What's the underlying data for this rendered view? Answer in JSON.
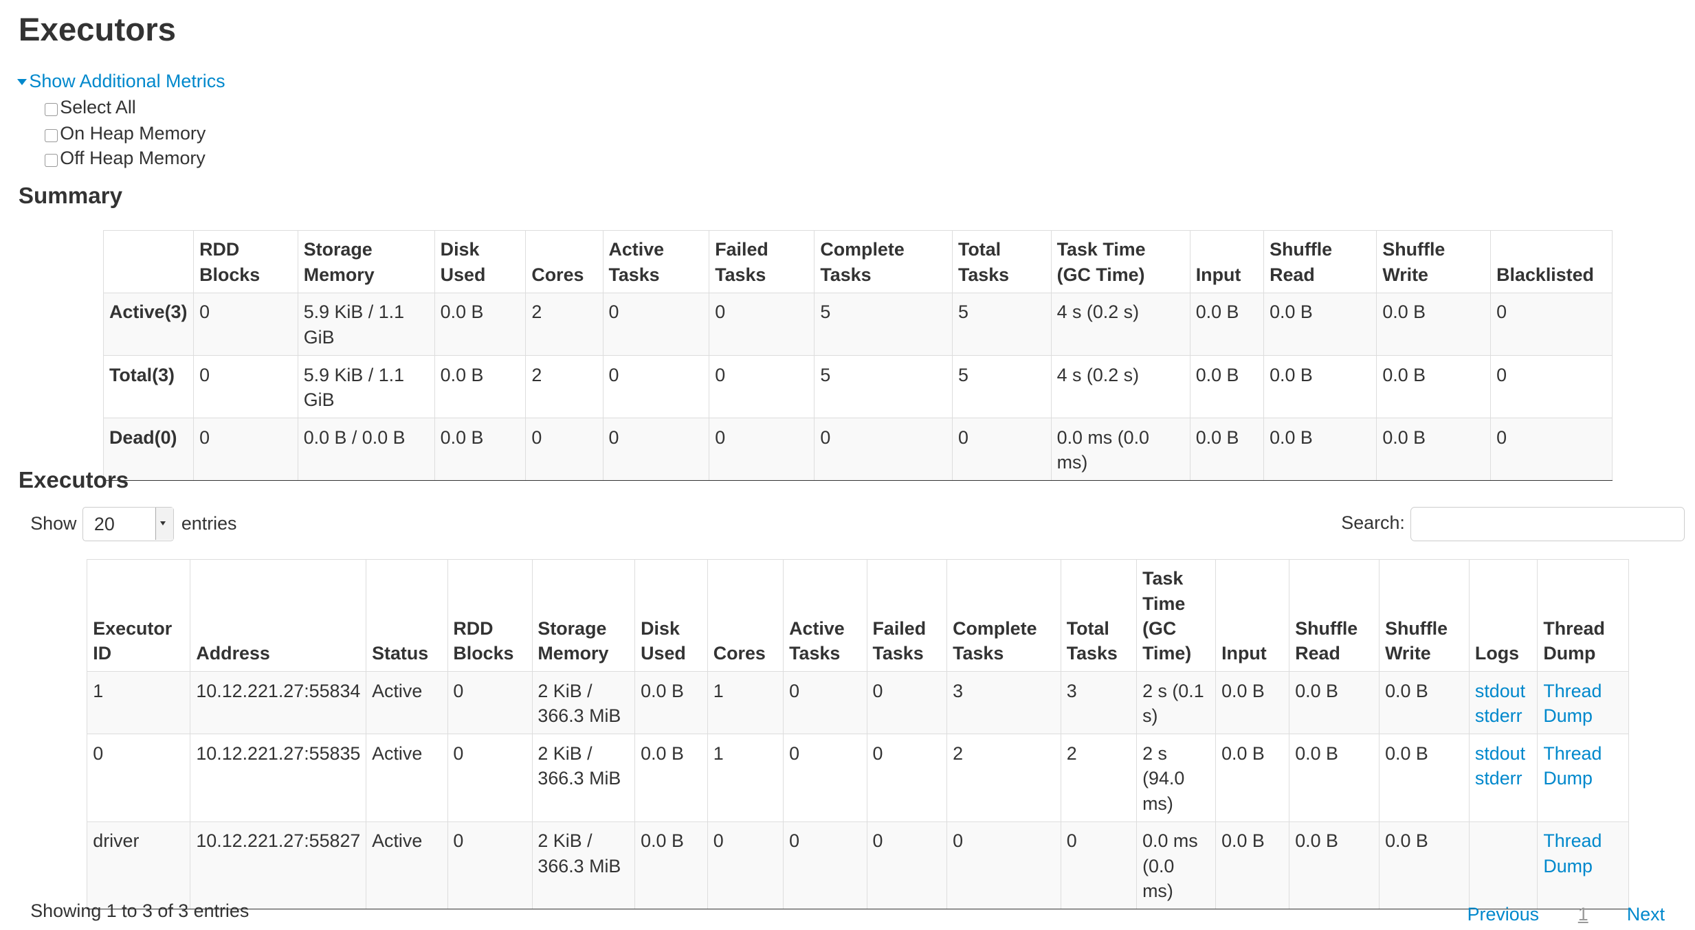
{
  "page_title": "Executors",
  "additional_metrics": {
    "toggle_label": "Show Additional Metrics",
    "options": [
      "Select All",
      "On Heap Memory",
      "Off Heap Memory"
    ]
  },
  "summary": {
    "heading": "Summary",
    "columns": [
      "",
      "RDD Blocks",
      "Storage Memory",
      "Disk Used",
      "Cores",
      "Active Tasks",
      "Failed Tasks",
      "Complete Tasks",
      "Total Tasks",
      "Task Time (GC Time)",
      "Input",
      "Shuffle Read",
      "Shuffle Write",
      "Blacklisted"
    ],
    "rows": [
      [
        "Active(3)",
        "0",
        "5.9 KiB / 1.1 GiB",
        "0.0 B",
        "2",
        "0",
        "0",
        "5",
        "5",
        "4 s (0.2 s)",
        "0.0 B",
        "0.0 B",
        "0.0 B",
        "0"
      ],
      [
        "Total(3)",
        "0",
        "5.9 KiB / 1.1 GiB",
        "0.0 B",
        "2",
        "0",
        "0",
        "5",
        "5",
        "4 s (0.2 s)",
        "0.0 B",
        "0.0 B",
        "0.0 B",
        "0"
      ],
      [
        "Dead(0)",
        "0",
        "0.0 B / 0.0 B",
        "0.0 B",
        "0",
        "0",
        "0",
        "0",
        "0",
        "0.0 ms (0.0 ms)",
        "0.0 B",
        "0.0 B",
        "0.0 B",
        "0"
      ]
    ]
  },
  "executors": {
    "heading": "Executors",
    "show_label": "Show",
    "page_size": "20",
    "entries_label": "entries",
    "search_label": "Search:",
    "search_value": "",
    "columns": [
      "Executor ID",
      "Address",
      "Status",
      "RDD Blocks",
      "Storage Memory",
      "Disk Used",
      "Cores",
      "Active Tasks",
      "Failed Tasks",
      "Complete Tasks",
      "Total Tasks",
      "Task Time (GC Time)",
      "Input",
      "Shuffle Read",
      "Shuffle Write",
      "Logs",
      "Thread Dump"
    ],
    "rows": [
      {
        "cells": [
          "1",
          "10.12.221.27:55834",
          "Active",
          "0",
          "2 KiB / 366.3 MiB",
          "0.0 B",
          "1",
          "0",
          "0",
          "3",
          "3",
          "2 s (0.1 s)",
          "0.0 B",
          "0.0 B",
          "0.0 B"
        ],
        "logs": [
          "stdout",
          "stderr"
        ],
        "thread_dump": "Thread Dump"
      },
      {
        "cells": [
          "0",
          "10.12.221.27:55835",
          "Active",
          "0",
          "2 KiB / 366.3 MiB",
          "0.0 B",
          "1",
          "0",
          "0",
          "2",
          "2",
          "2 s (94.0 ms)",
          "0.0 B",
          "0.0 B",
          "0.0 B"
        ],
        "logs": [
          "stdout",
          "stderr"
        ],
        "thread_dump": "Thread Dump"
      },
      {
        "cells": [
          "driver",
          "10.12.221.27:55827",
          "Active",
          "0",
          "2 KiB / 366.3 MiB",
          "0.0 B",
          "0",
          "0",
          "0",
          "0",
          "0",
          "0.0 ms (0.0 ms)",
          "0.0 B",
          "0.0 B",
          "0.0 B"
        ],
        "logs": [],
        "thread_dump": "Thread Dump"
      }
    ],
    "info": "Showing 1 to 3 of 3 entries",
    "pagination": {
      "previous": "Previous",
      "current": "1",
      "next": "Next"
    }
  },
  "colors": {
    "link": "#0088cc",
    "sort_indicator": "#7b7fe0",
    "stripe": "#f9f9f9"
  }
}
